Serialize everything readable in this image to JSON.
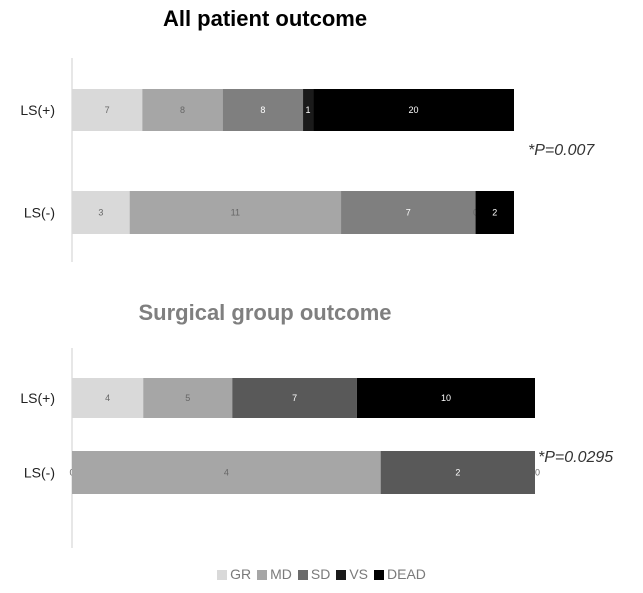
{
  "chart_data": [
    {
      "type": "stacked-bar-horizontal",
      "title": "All patient outcome",
      "categories": [
        "LS(+)",
        "LS(-)"
      ],
      "series": [
        {
          "name": "GR",
          "values": [
            7,
            3
          ]
        },
        {
          "name": "MD",
          "values": [
            8,
            11
          ]
        },
        {
          "name": "SD",
          "values": [
            8,
            7
          ]
        },
        {
          "name": "VS",
          "values": [
            1,
            0
          ]
        },
        {
          "name": "DEAD",
          "values": [
            20,
            2
          ]
        }
      ],
      "annotation": "*P=0.007",
      "normalized": true,
      "grid": false
    },
    {
      "type": "stacked-bar-horizontal",
      "title": "Surgical group outcome",
      "categories": [
        "LS(+)",
        "LS(-)"
      ],
      "series": [
        {
          "name": "GR",
          "values": [
            4,
            0
          ]
        },
        {
          "name": "MD",
          "values": [
            5,
            4
          ]
        },
        {
          "name": "SD",
          "values": [
            7,
            2
          ]
        },
        {
          "name": "VS",
          "values": [
            10,
            0
          ]
        }
      ],
      "annotation": "*P=0.0295",
      "normalized": true,
      "grid": false
    }
  ],
  "legend": {
    "placement": "bottom",
    "items": [
      {
        "label": "GR",
        "color": "#d9d9d9"
      },
      {
        "label": "MD",
        "color": "#a6a6a6"
      },
      {
        "label": "SD",
        "color": "#6b6b6b"
      },
      {
        "label": "VS",
        "color": "#1a1a1a"
      },
      {
        "label": "DEAD",
        "color": "#000000"
      }
    ]
  },
  "colors": {
    "all": [
      "#d9d9d9",
      "#a6a6a6",
      "#7f7f7f",
      "#1a1a1a",
      "#000000"
    ],
    "surgical": [
      "#d9d9d9",
      "#a6a6a6",
      "#595959",
      "#000000"
    ],
    "title_all": "#000000",
    "title_surgical": "#7f7f7f"
  }
}
